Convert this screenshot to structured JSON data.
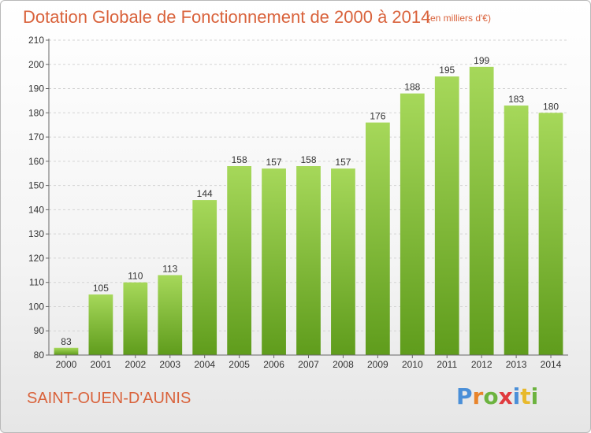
{
  "title": "Dotation Globale de Fonctionnement de 2000 à 2014",
  "subtitle": "(en milliers d'€)",
  "commune": "SAINT-OUEN-D'AUNIS",
  "logo": {
    "letters": [
      "P",
      "r",
      "o",
      "x",
      "i",
      "t",
      "i"
    ],
    "colors": [
      "#4a8fd8",
      "#e8842b",
      "#6cb33f",
      "#e03a3e",
      "#4a8fd8",
      "#e8b92b",
      "#6cb33f"
    ]
  },
  "colors": {
    "bar_top": "#a6d85a",
    "bar_bottom": "#5f9c1c",
    "grid": "#d3d3d3",
    "axis": "#666666",
    "accent_text": "#d9623b"
  },
  "chart_data": {
    "type": "bar",
    "title": "Dotation Globale de Fonctionnement de 2000 à 2014",
    "subtitle": "(en milliers d'€)",
    "categories": [
      "2000",
      "2001",
      "2002",
      "2003",
      "2004",
      "2005",
      "2006",
      "2007",
      "2008",
      "2009",
      "2010",
      "2011",
      "2012",
      "2013",
      "2014"
    ],
    "values": [
      83,
      105,
      110,
      113,
      144,
      158,
      157,
      158,
      157,
      176,
      188,
      195,
      199,
      183,
      180
    ],
    "xlabel": "",
    "ylabel": "",
    "ylim": [
      80,
      210
    ],
    "yticks": [
      80,
      90,
      100,
      110,
      120,
      130,
      140,
      150,
      160,
      170,
      180,
      190,
      200,
      210
    ],
    "grid": true,
    "legend": "none"
  }
}
